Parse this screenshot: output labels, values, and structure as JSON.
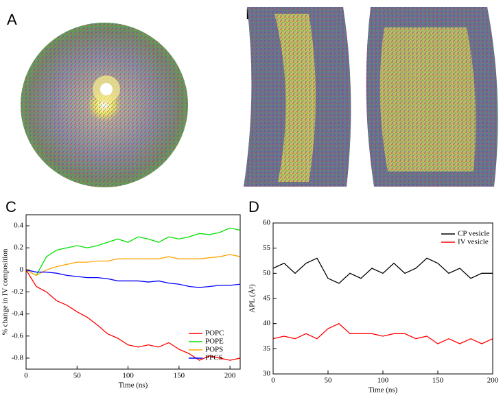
{
  "panel_labels": [
    "A",
    "B",
    "C",
    "D"
  ],
  "chart_data": [
    {
      "type": "line",
      "x_label": "Time (ns)",
      "y_label": "% change in IV composition",
      "x": [
        0,
        10,
        20,
        30,
        40,
        50,
        60,
        70,
        80,
        90,
        100,
        110,
        120,
        130,
        140,
        150,
        160,
        170,
        180,
        190,
        200,
        210
      ],
      "series": [
        {
          "name": "POPC",
          "color": "#ff0000",
          "values": [
            0,
            -0.15,
            -0.2,
            -0.28,
            -0.32,
            -0.38,
            -0.43,
            -0.5,
            -0.58,
            -0.62,
            -0.68,
            -0.7,
            -0.68,
            -0.7,
            -0.66,
            -0.72,
            -0.76,
            -0.82,
            -0.78,
            -0.8,
            -0.82,
            -0.8
          ]
        },
        {
          "name": "POPE",
          "color": "#00e000",
          "values": [
            0,
            -0.05,
            0.12,
            0.18,
            0.2,
            0.22,
            0.2,
            0.22,
            0.25,
            0.28,
            0.25,
            0.3,
            0.28,
            0.25,
            0.3,
            0.28,
            0.3,
            0.33,
            0.32,
            0.34,
            0.38,
            0.36
          ]
        },
        {
          "name": "POPS",
          "color": "#ffa500",
          "values": [
            0,
            -0.05,
            0,
            0.03,
            0.05,
            0.07,
            0.07,
            0.08,
            0.08,
            0.1,
            0.1,
            0.1,
            0.1,
            0.1,
            0.12,
            0.1,
            0.1,
            0.1,
            0.11,
            0.12,
            0.14,
            0.12
          ]
        },
        {
          "name": "PPCS",
          "color": "#0000ff",
          "values": [
            0,
            -0.02,
            -0.02,
            -0.03,
            -0.05,
            -0.06,
            -0.07,
            -0.07,
            -0.08,
            -0.1,
            -0.1,
            -0.1,
            -0.11,
            -0.1,
            -0.12,
            -0.13,
            -0.15,
            -0.16,
            -0.15,
            -0.14,
            -0.14,
            -0.13
          ]
        }
      ],
      "xlim": [
        0,
        210
      ],
      "xticks": [
        0,
        50,
        100,
        150,
        200
      ],
      "ylim": [
        -0.9,
        0.5
      ],
      "yticks": [
        -0.8,
        -0.6,
        -0.4,
        -0.2,
        0,
        0.2,
        0.4
      ],
      "legend": "lower right"
    },
    {
      "type": "line",
      "x_label": "Time (ns)",
      "y_label": "APL (Å²)",
      "x": [
        0,
        10,
        20,
        30,
        40,
        50,
        60,
        70,
        80,
        90,
        100,
        110,
        120,
        130,
        140,
        150,
        160,
        170,
        180,
        190,
        200
      ],
      "series": [
        {
          "name": "CP vesicle",
          "color": "#000000",
          "values": [
            51,
            52,
            50,
            52,
            53,
            49,
            48,
            50,
            49,
            51,
            50,
            52,
            50,
            51,
            53,
            52,
            50,
            51,
            49,
            50,
            50
          ]
        },
        {
          "name": "IV vesicle",
          "color": "#ff0000",
          "values": [
            37,
            37.5,
            37,
            38,
            37,
            39,
            40,
            38,
            38,
            38,
            37.5,
            38,
            38,
            37,
            37.5,
            36,
            37,
            36,
            37,
            36,
            37
          ]
        }
      ],
      "xlim": [
        0,
        200
      ],
      "xticks": [
        0,
        50,
        100,
        150,
        200
      ],
      "ylim": [
        30,
        60
      ],
      "yticks": [
        30,
        35,
        40,
        45,
        50,
        55,
        60
      ],
      "legend": "upper right"
    }
  ]
}
